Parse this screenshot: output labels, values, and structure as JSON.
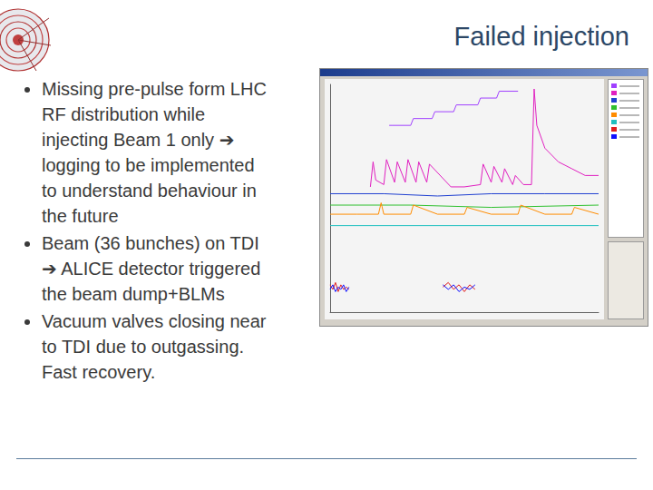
{
  "slide": {
    "title": "Failed injection",
    "bullets": [
      [
        "Missing pre-pulse form LHC",
        "RF distribution while",
        "injecting Beam 1 only ➔",
        "logging to be implemented",
        "to understand behaviour in",
        "the future"
      ],
      [
        "Beam (36 bunches) on TDI",
        "➔ ALICE detector triggered",
        "the beam dump+BLMs"
      ],
      [
        "Vacuum valves closing near",
        "to TDI due to outgassing.",
        "Fast recovery."
      ]
    ]
  },
  "chart_data": {
    "type": "line",
    "xlim": [
      0,
      100
    ],
    "ylim": [
      0,
      1
    ],
    "tick_labels": false,
    "grid": false,
    "series": [
      {
        "color": "#a040ff",
        "x": [
          22,
          23,
          30,
          31,
          38,
          39,
          46,
          47,
          55,
          56,
          62,
          63,
          70
        ],
        "values": [
          0.82,
          0.82,
          0.82,
          0.85,
          0.85,
          0.88,
          0.88,
          0.91,
          0.91,
          0.94,
          0.94,
          0.97,
          0.97
        ]
      },
      {
        "color": "#e020c0",
        "x": [
          15,
          16,
          17,
          20,
          21,
          24,
          25,
          28,
          29,
          32,
          33,
          36,
          37,
          45,
          50,
          56,
          57,
          60,
          61,
          64,
          65,
          68,
          69,
          72,
          75,
          76,
          77,
          80,
          85,
          90,
          95,
          100
        ],
        "values": [
          0.55,
          0.66,
          0.58,
          0.56,
          0.67,
          0.57,
          0.66,
          0.57,
          0.67,
          0.57,
          0.66,
          0.57,
          0.65,
          0.55,
          0.55,
          0.56,
          0.65,
          0.57,
          0.64,
          0.57,
          0.63,
          0.56,
          0.6,
          0.56,
          0.56,
          0.98,
          0.82,
          0.72,
          0.66,
          0.63,
          0.6,
          0.6
        ]
      },
      {
        "color": "#2040d0",
        "x": [
          0,
          20,
          40,
          60,
          80,
          100
        ],
        "values": [
          0.52,
          0.52,
          0.51,
          0.52,
          0.52,
          0.52
        ]
      },
      {
        "color": "#30c030",
        "x": [
          0,
          30,
          60,
          100
        ],
        "values": [
          0.47,
          0.47,
          0.46,
          0.47
        ]
      },
      {
        "color": "#ff8c00",
        "x": [
          0,
          10,
          18,
          19,
          20,
          30,
          31,
          40,
          50,
          51,
          60,
          70,
          71,
          80,
          90,
          91,
          100
        ],
        "values": [
          0.43,
          0.43,
          0.43,
          0.48,
          0.43,
          0.43,
          0.47,
          0.43,
          0.43,
          0.46,
          0.43,
          0.43,
          0.47,
          0.43,
          0.43,
          0.46,
          0.43
        ]
      },
      {
        "color": "#20c0c0",
        "x": [
          0,
          50,
          100
        ],
        "values": [
          0.38,
          0.38,
          0.38
        ]
      },
      {
        "color": "#e02020",
        "x": [
          0,
          1,
          2,
          3,
          4,
          5,
          6,
          7,
          20,
          42,
          44,
          46,
          48,
          50,
          52,
          54
        ],
        "values": [
          0.12,
          0.1,
          0.13,
          0.09,
          0.12,
          0.1,
          0.11,
          0.1,
          null,
          0.11,
          0.13,
          0.1,
          0.12,
          0.09,
          0.12,
          0.1
        ]
      },
      {
        "color": "#1010ff",
        "x": [
          0,
          1,
          2,
          3,
          4,
          5,
          6,
          7,
          20,
          42,
          44,
          46,
          48,
          50,
          52,
          54
        ],
        "values": [
          0.1,
          0.12,
          0.09,
          0.11,
          0.1,
          0.12,
          0.09,
          0.11,
          null,
          0.12,
          0.1,
          0.12,
          0.09,
          0.11,
          0.1,
          0.12
        ]
      }
    ]
  }
}
